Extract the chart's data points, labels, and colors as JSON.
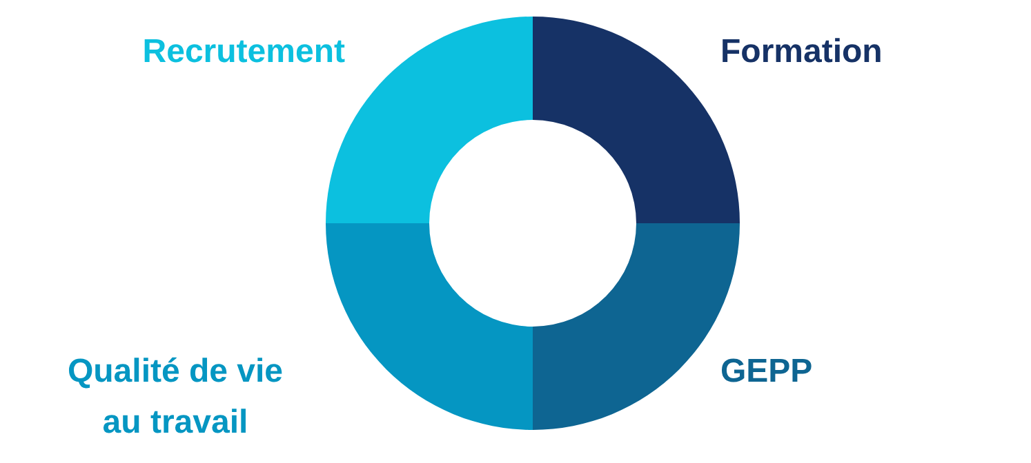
{
  "chart_data": {
    "type": "donut",
    "categories": [
      "Formation",
      "GEPP",
      "Qualité de vie au travail",
      "Recrutement"
    ],
    "values": [
      25,
      25,
      25,
      25
    ],
    "colors": [
      "#163266",
      "#0e6592",
      "#0596c2",
      "#0cc0df"
    ]
  }
}
